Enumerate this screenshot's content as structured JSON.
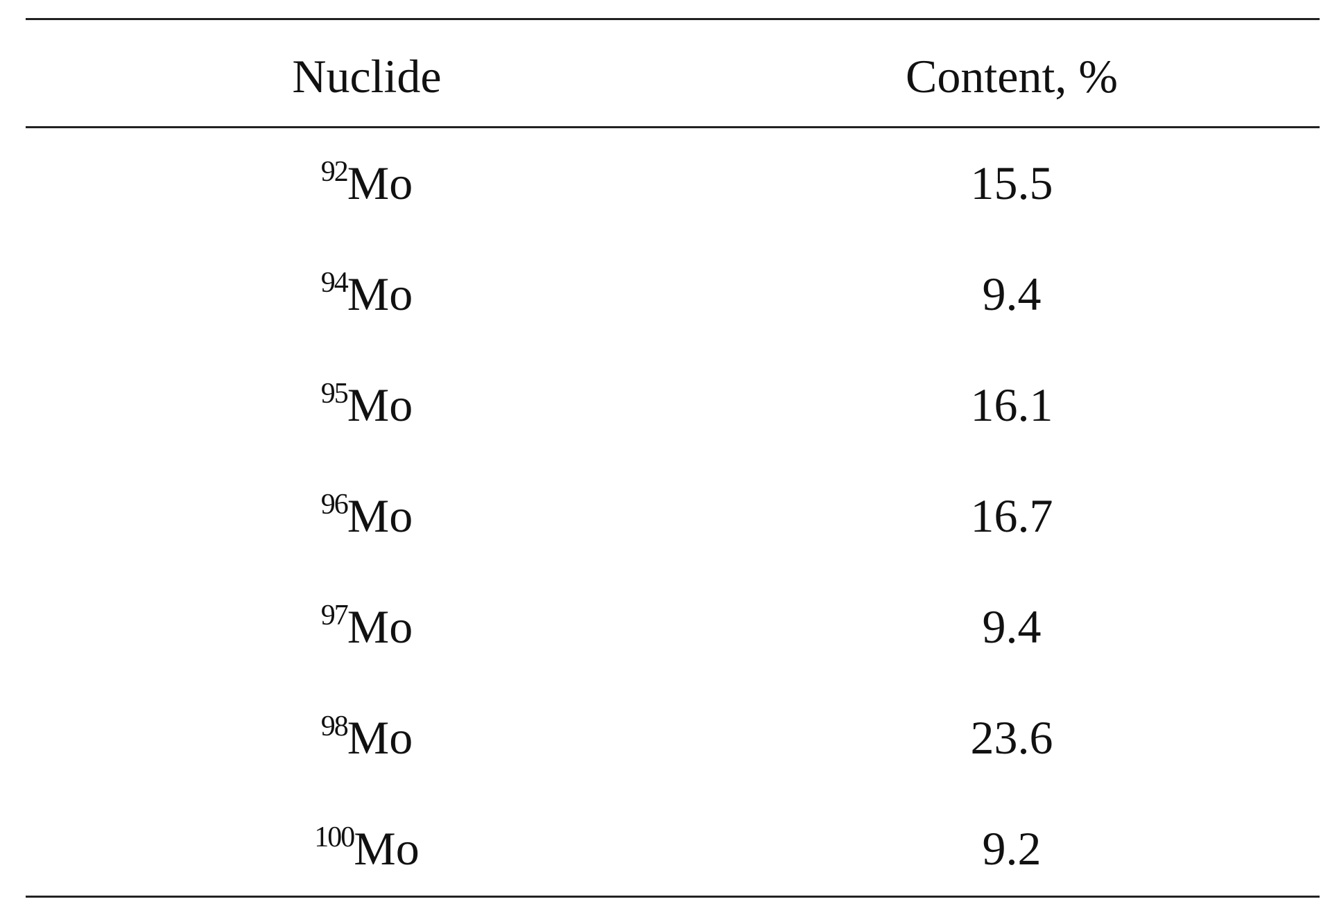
{
  "table": {
    "header": [
      "Nuclide",
      "Content, %"
    ],
    "rows": [
      [
        {
          "mass": "92",
          "symbol": "Mo"
        },
        15.5
      ],
      [
        {
          "mass": "94",
          "symbol": "Mo"
        },
        9.4
      ],
      [
        {
          "mass": "95",
          "symbol": "Mo"
        },
        16.1
      ],
      [
        {
          "mass": "96",
          "symbol": "Mo"
        },
        16.7
      ],
      [
        {
          "mass": "97",
          "symbol": "Mo"
        },
        9.4
      ],
      [
        {
          "mass": "98",
          "symbol": "Mo"
        },
        23.6
      ],
      [
        {
          "mass": "100",
          "symbol": "Mo"
        },
        9.2
      ]
    ]
  }
}
